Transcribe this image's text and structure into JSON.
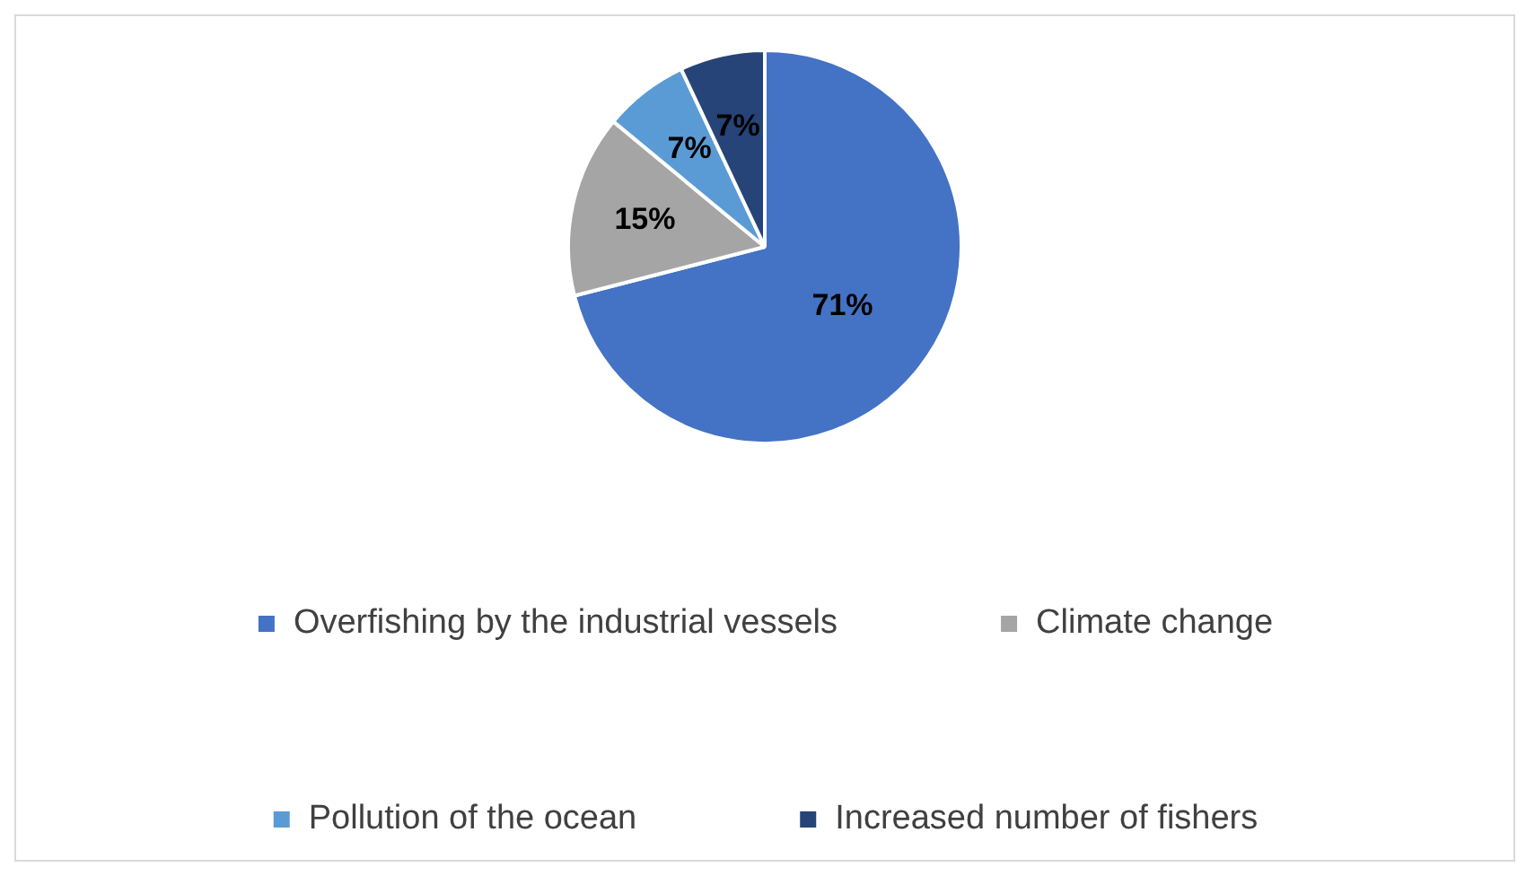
{
  "chart_data": {
    "type": "pie",
    "categories": [
      "Overfishing by the industrial vessels",
      "Climate change",
      "Pollution of the ocean",
      "Increased number of fishers"
    ],
    "values": [
      71,
      15,
      7,
      7
    ],
    "colors": [
      "#4472c4",
      "#a5a5a5",
      "#5b9bd5",
      "#264478"
    ],
    "value_labels": [
      "71%",
      "15%",
      "7%",
      "7%"
    ],
    "legend": "bottom"
  }
}
